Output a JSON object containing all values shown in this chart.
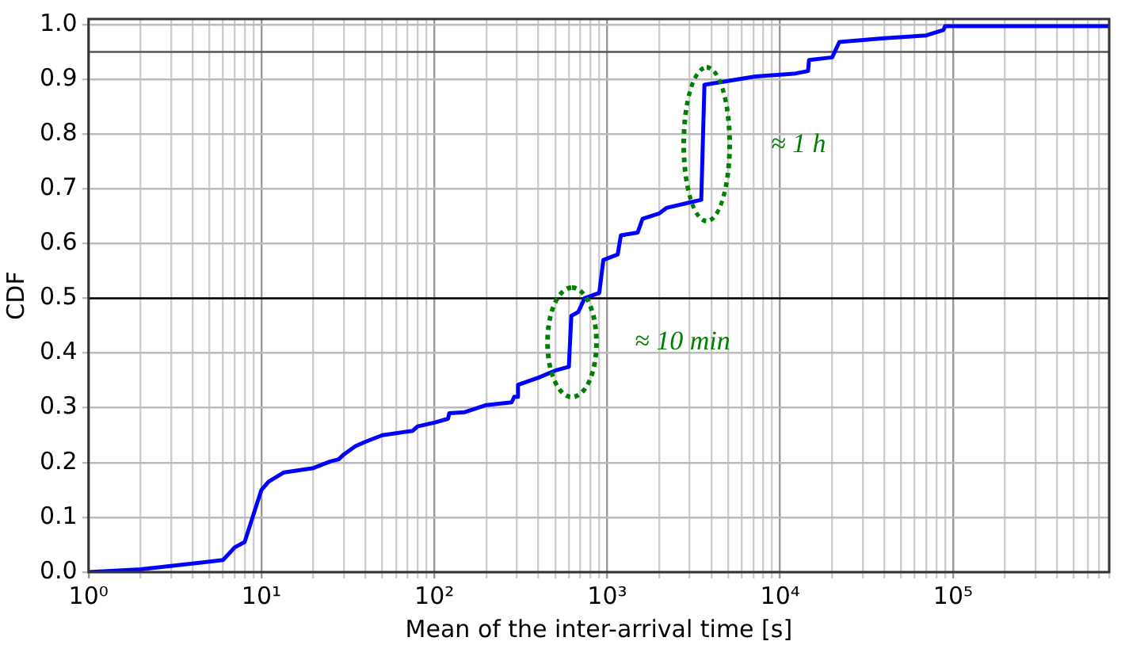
{
  "chart_data": {
    "type": "line",
    "xlabel": "Mean of the inter-arrival time [s]",
    "ylabel": "CDF",
    "log": "x",
    "grid": true,
    "legend": false,
    "marker": "none",
    "line_style": "solid",
    "xlim": [
      1,
      800000
    ],
    "ylim": [
      0,
      1.01
    ],
    "xticks": [
      {
        "value": 1,
        "label": "10⁰"
      },
      {
        "value": 2,
        "label": null
      },
      {
        "value": 3,
        "label": null
      },
      {
        "value": 4,
        "label": null
      },
      {
        "value": 5,
        "label": null
      },
      {
        "value": 6,
        "label": null
      },
      {
        "value": 7,
        "label": null
      },
      {
        "value": 8,
        "label": null
      },
      {
        "value": 9,
        "label": null
      },
      {
        "value": 10,
        "label": "10¹"
      },
      {
        "value": 20,
        "label": null
      },
      {
        "value": 30,
        "label": null
      },
      {
        "value": 40,
        "label": null
      },
      {
        "value": 50,
        "label": null
      },
      {
        "value": 60,
        "label": null
      },
      {
        "value": 70,
        "label": null
      },
      {
        "value": 80,
        "label": null
      },
      {
        "value": 90,
        "label": null
      },
      {
        "value": 100,
        "label": "10²"
      },
      {
        "value": 200,
        "label": null
      },
      {
        "value": 300,
        "label": null
      },
      {
        "value": 400,
        "label": null
      },
      {
        "value": 500,
        "label": null
      },
      {
        "value": 600,
        "label": null
      },
      {
        "value": 700,
        "label": null
      },
      {
        "value": 800,
        "label": null
      },
      {
        "value": 900,
        "label": null
      },
      {
        "value": 1000,
        "label": "10³"
      },
      {
        "value": 2000,
        "label": null
      },
      {
        "value": 3000,
        "label": null
      },
      {
        "value": 4000,
        "label": null
      },
      {
        "value": 5000,
        "label": null
      },
      {
        "value": 6000,
        "label": null
      },
      {
        "value": 7000,
        "label": null
      },
      {
        "value": 8000,
        "label": null
      },
      {
        "value": 9000,
        "label": null
      },
      {
        "value": 10000,
        "label": "10⁴"
      },
      {
        "value": 20000,
        "label": null
      },
      {
        "value": 30000,
        "label": null
      },
      {
        "value": 40000,
        "label": null
      },
      {
        "value": 50000,
        "label": null
      },
      {
        "value": 60000,
        "label": null
      },
      {
        "value": 70000,
        "label": null
      },
      {
        "value": 80000,
        "label": null
      },
      {
        "value": 90000,
        "label": null
      },
      {
        "value": 100000,
        "label": "10⁵"
      },
      {
        "value": 200000,
        "label": null
      },
      {
        "value": 300000,
        "label": null
      },
      {
        "value": 400000,
        "label": null
      },
      {
        "value": 500000,
        "label": null
      },
      {
        "value": 600000,
        "label": null
      },
      {
        "value": 700000,
        "label": null
      },
      {
        "value": 800000,
        "label": null
      }
    ],
    "yticks": [
      {
        "value": 0,
        "label": "0.0"
      },
      {
        "value": 0.1,
        "label": "0.1"
      },
      {
        "value": 0.2,
        "label": "0.2"
      },
      {
        "value": 0.3,
        "label": "0.3"
      },
      {
        "value": 0.4,
        "label": "0.4"
      },
      {
        "value": 0.5,
        "label": "0.5"
      },
      {
        "value": 0.6,
        "label": "0.6"
      },
      {
        "value": 0.7,
        "label": "0.7"
      },
      {
        "value": 0.8,
        "label": "0.8"
      },
      {
        "value": 0.9,
        "label": "0.9"
      },
      {
        "value": 1,
        "label": "1.0"
      }
    ],
    "ref_lines": [
      {
        "axis": "y",
        "value": 0.5,
        "color": "#000000"
      },
      {
        "axis": "y",
        "value": 0.95,
        "color": "#555555"
      }
    ],
    "annotations": [
      {
        "text": "≈ 10 min",
        "x": 620,
        "y": 0.42
      },
      {
        "text": "≈ 1 h",
        "x": 3800,
        "y": 0.78
      }
    ],
    "x": [
      1,
      2,
      6,
      7,
      8,
      10,
      11,
      13.5,
      20,
      25,
      28,
      30,
      35,
      40,
      50,
      75,
      80,
      100,
      120,
      122,
      150,
      200,
      280,
      290,
      300,
      305,
      400,
      500,
      600,
      620,
      680,
      740,
      900,
      950,
      1150,
      1200,
      1500,
      1600,
      2000,
      2200,
      3000,
      3500,
      3650,
      7200,
      12000,
      14500,
      14700,
      20000,
      22000,
      40000,
      70000,
      88000,
      90000,
      800000
    ],
    "series": [
      {
        "color": "#0000ff",
        "values": [
          0,
          0.005,
          0.022,
          0.045,
          0.055,
          0.15,
          0.165,
          0.182,
          0.19,
          0.202,
          0.206,
          0.215,
          0.23,
          0.238,
          0.25,
          0.258,
          0.266,
          0.273,
          0.28,
          0.29,
          0.292,
          0.305,
          0.31,
          0.32,
          0.32,
          0.342,
          0.355,
          0.368,
          0.375,
          0.468,
          0.475,
          0.5,
          0.51,
          0.57,
          0.58,
          0.615,
          0.62,
          0.645,
          0.655,
          0.665,
          0.675,
          0.68,
          0.89,
          0.905,
          0.91,
          0.915,
          0.935,
          0.94,
          0.968,
          0.975,
          0.98,
          0.99,
          0.997,
          0.997
        ]
      }
    ]
  }
}
